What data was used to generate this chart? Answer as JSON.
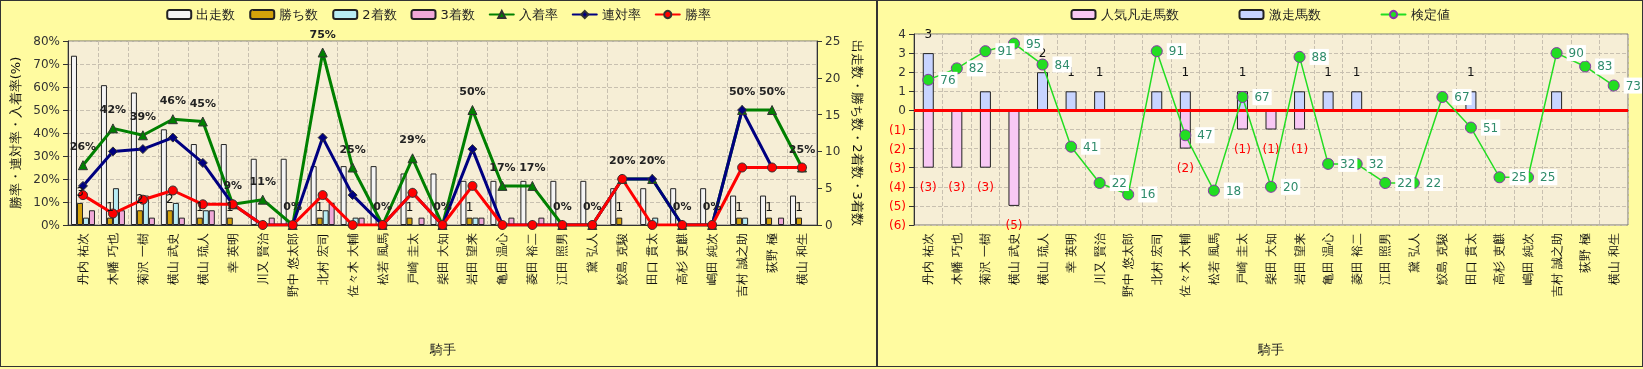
{
  "chart_data": [
    {
      "type": "bar",
      "xlabel": "騎手",
      "ylabel": "勝率・連対率・入着率(%)",
      "y2label": "出走数・勝ち数・2着数・3着数",
      "categories": [
        "丹内 祐次",
        "木幡 巧也",
        "菊沢 一樹",
        "横山 武史",
        "横山 琉人",
        "幸 英明",
        "川又 賢治",
        "野中 悠太郎",
        "北村 宏司",
        "佐々木 大輔",
        "松若 風馬",
        "戸崎 圭太",
        "柴田 大知",
        "岩田 望来",
        "亀田 温心",
        "菱田 裕二",
        "江田 照男",
        "黛 弘人",
        "鮫島 克駿",
        "田口 貫太",
        "高杉 吏麒",
        "嶋田 純次",
        "吉村 誠之助",
        "荻野 極",
        "横山 和生"
      ],
      "ylim": [
        0,
        80
      ],
      "yticks": [
        {
          "value": 0,
          "label": "0%"
        },
        {
          "value": 10,
          "label": "10%"
        },
        {
          "value": 20,
          "label": "20%"
        },
        {
          "value": 30,
          "label": "30%"
        },
        {
          "value": 40,
          "label": "40%"
        },
        {
          "value": 50,
          "label": "50%"
        },
        {
          "value": 60,
          "label": "60%"
        },
        {
          "value": 70,
          "label": "70%"
        },
        {
          "value": 80,
          "label": "80%"
        }
      ],
      "y2lim": [
        0,
        25
      ],
      "y2ticks": [
        0,
        5,
        10,
        15,
        20,
        25
      ],
      "grid": true,
      "legend": "top",
      "series": [
        {
          "name": "出走数",
          "axis": "y2",
          "color": "#f4f4f4",
          "values": [
            23,
            19,
            18,
            13,
            11,
            11,
            9,
            9,
            8,
            8,
            8,
            7,
            7,
            6,
            6,
            6,
            6,
            6,
            5,
            5,
            5,
            5,
            4,
            4,
            4
          ]
        },
        {
          "name": "勝ち数",
          "axis": "y2",
          "color": "#d4a20a",
          "values": [
            3,
            1,
            2,
            2,
            1,
            1,
            0,
            0,
            1,
            0,
            0,
            1,
            0,
            1,
            0,
            0,
            0,
            0,
            1,
            0,
            0,
            0,
            1,
            1,
            1
          ],
          "value_labels": [
            "3",
            "1",
            "2",
            "2",
            "1",
            "1",
            null,
            null,
            "1",
            null,
            null,
            "1",
            null,
            "1",
            null,
            null,
            null,
            null,
            "1",
            null,
            null,
            null,
            "1",
            "1",
            "1"
          ]
        },
        {
          "name": "2着数",
          "axis": "y2",
          "color": "#b8ecf4",
          "values": [
            1,
            5,
            4,
            3,
            2,
            0,
            0,
            0,
            2,
            1,
            0,
            0,
            0,
            1,
            0,
            0,
            0,
            0,
            0,
            1,
            0,
            0,
            1,
            0,
            0
          ]
        },
        {
          "name": "3着数",
          "axis": "y2",
          "color": "#f0a8d8",
          "values": [
            2,
            2,
            1,
            1,
            2,
            0,
            1,
            0,
            3,
            1,
            0,
            1,
            0,
            1,
            1,
            1,
            0,
            0,
            0,
            0,
            0,
            0,
            0,
            1,
            0
          ]
        },
        {
          "name": "入着率",
          "type": "line",
          "marker": "triangle",
          "color": "#008000",
          "values": [
            26,
            42,
            39,
            46,
            45,
            9,
            11,
            0,
            75,
            25,
            0,
            29,
            0,
            50,
            17,
            17,
            0,
            0,
            20,
            20,
            0,
            0,
            50,
            50,
            25
          ],
          "value_labels": [
            "26%",
            "42%",
            "39%",
            "46%",
            "45%",
            "9%",
            "11%",
            "0%",
            "75%",
            "25%",
            "0%",
            "29%",
            "0%",
            "50%",
            "17%",
            "17%",
            "0%",
            "0%",
            "20%",
            "20%",
            "0%",
            "0%",
            "50%",
            "50%",
            "25%"
          ]
        },
        {
          "name": "連対率",
          "type": "line",
          "marker": "diamond",
          "color": "#000080",
          "values": [
            17,
            32,
            33,
            38,
            27,
            9,
            0,
            0,
            38,
            13,
            0,
            14,
            0,
            33,
            0,
            0,
            0,
            0,
            20,
            20,
            0,
            0,
            50,
            25,
            25
          ]
        },
        {
          "name": "勝率",
          "type": "line",
          "marker": "circle",
          "color": "#ff0000",
          "values": [
            13,
            5,
            11,
            15,
            9,
            9,
            0,
            0,
            13,
            0,
            0,
            14,
            0,
            17,
            0,
            0,
            0,
            0,
            20,
            0,
            0,
            0,
            25,
            25,
            25
          ]
        }
      ]
    },
    {
      "type": "bar",
      "xlabel": "騎手",
      "stacked": true,
      "categories": [
        "丹内 祐次",
        "木幡 巧也",
        "菊沢 一樹",
        "横山 武史",
        "横山 琉人",
        "幸 英明",
        "川又 賢治",
        "野中 悠太郎",
        "北村 宏司",
        "佐々木 大輔",
        "松若 風馬",
        "戸崎 圭太",
        "柴田 大知",
        "岩田 望来",
        "亀田 温心",
        "菱田 裕二",
        "江田 照男",
        "黛 弘人",
        "鮫島 克駿",
        "田口 貫太",
        "高杉 吏麒",
        "嶋田 純次",
        "吉村 誠之助",
        "荻野 極",
        "横山 和生"
      ],
      "ylim": [
        -6,
        4
      ],
      "yticks": [
        {
          "value": -6,
          "label": "(6)"
        },
        {
          "value": -5,
          "label": "(5)"
        },
        {
          "value": -4,
          "label": "(4)"
        },
        {
          "value": -3,
          "label": "(3)"
        },
        {
          "value": -2,
          "label": "(2)"
        },
        {
          "value": -1,
          "label": "(1)"
        },
        0,
        1,
        2,
        3,
        4
      ],
      "y2lim": [
        0,
        100
      ],
      "grid": true,
      "legend": "top",
      "ref_lines": [
        {
          "axis": "y",
          "value": 0,
          "color": "#ff0000"
        }
      ],
      "series": [
        {
          "name": "人気凡走馬数",
          "color": "#f8c8f4",
          "values": [
            -3,
            -3,
            -3,
            -5,
            0,
            0,
            0,
            0,
            0,
            -2,
            0,
            -1,
            -1,
            -1,
            0,
            0,
            0,
            0,
            0,
            0,
            0,
            0,
            0,
            0,
            0
          ],
          "value_labels": [
            "(3)",
            "(3)",
            "(3)",
            "(5)",
            null,
            null,
            null,
            null,
            null,
            "(2)",
            null,
            "(1)",
            "(1)",
            "(1)",
            null,
            null,
            null,
            null,
            null,
            null,
            null,
            null,
            null,
            null,
            null
          ]
        },
        {
          "name": "激走馬数",
          "color": "#c8d4ff",
          "values": [
            3,
            0,
            1,
            0,
            2,
            1,
            1,
            0,
            1,
            1,
            0,
            1,
            0,
            1,
            1,
            1,
            0,
            0,
            0,
            1,
            0,
            0,
            1,
            0,
            0
          ],
          "value_labels": [
            "3",
            null,
            null,
            null,
            "2",
            "1",
            "1",
            null,
            null,
            "1",
            null,
            "1",
            null,
            null,
            "1",
            "1",
            null,
            null,
            null,
            "1",
            null,
            null,
            null,
            null,
            null
          ]
        },
        {
          "name": "検定値",
          "type": "line",
          "axis": "y2",
          "marker": "circle",
          "color": "#22dd22",
          "values": [
            76,
            82,
            91,
            95,
            84,
            41,
            22,
            16,
            91,
            47,
            18,
            67,
            20,
            88,
            32,
            32,
            22,
            22,
            67,
            51,
            25,
            25,
            90,
            83,
            73
          ],
          "value_labels": [
            "76",
            "82",
            "91",
            "95",
            "84",
            "41",
            "22",
            "16",
            "91",
            "47",
            "18",
            "67",
            "20",
            "88",
            "32",
            "32",
            "22",
            "22",
            "67",
            "51",
            "25",
            "25",
            "90",
            "83",
            "73"
          ]
        }
      ]
    }
  ]
}
